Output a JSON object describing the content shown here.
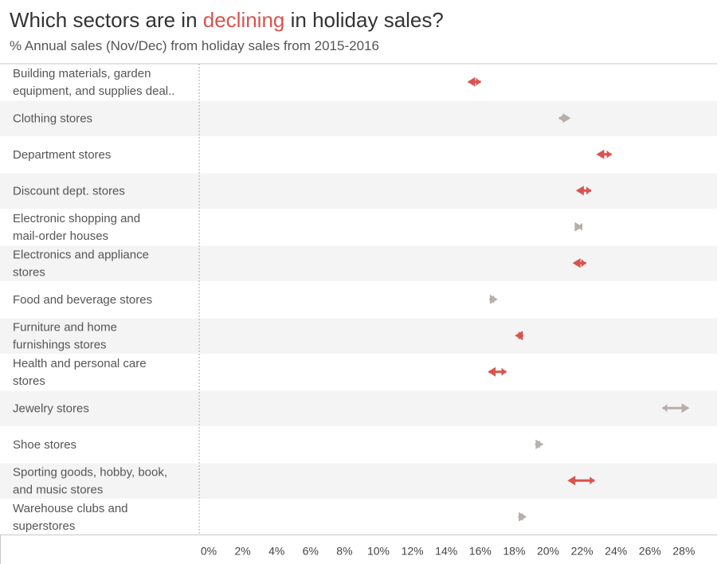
{
  "title": {
    "before": "Which sectors are in ",
    "highlight": "declining",
    "after": " in holiday sales?"
  },
  "subtitle": "% Annual sales (Nov/Dec) from holiday sales from 2015-2016",
  "colors": {
    "declining": "#d9534f",
    "increasing": "#b8aeab",
    "band": "#f4f4f4",
    "axis": "#c8c8c8"
  },
  "chart_data": {
    "type": "arrow",
    "title": "Which sectors are in declining in holiday sales?",
    "subtitle": "% Annual sales (Nov/Dec) from holiday sales from 2015-2016",
    "x_ticks": [
      "0%",
      "2%",
      "4%",
      "6%",
      "8%",
      "10%",
      "12%",
      "14%",
      "16%",
      "18%",
      "20%",
      "22%",
      "24%",
      "26%",
      "28%"
    ],
    "xlim": [
      0,
      30
    ],
    "series_names": [
      "2015",
      "2016"
    ],
    "categories": [
      {
        "label": [
          "Building materials, garden",
          "equipment, and supplies deal.."
        ],
        "from": 16.6,
        "to": 15.8
      },
      {
        "label": [
          "Clothing stores"
        ],
        "from": 21.2,
        "to": 21.9
      },
      {
        "label": [
          "Department stores"
        ],
        "from": 24.3,
        "to": 23.4
      },
      {
        "label": [
          "Discount dept. stores"
        ],
        "from": 23.1,
        "to": 22.2
      },
      {
        "label": [
          "Electronic shopping and",
          "mail-order houses"
        ],
        "from": 22.3,
        "to": 22.6
      },
      {
        "label": [
          "Electronics and appliance",
          "stores"
        ],
        "from": 22.8,
        "to": 22.0
      },
      {
        "label": [
          "Food and beverage stores"
        ],
        "from": 17.1,
        "to": 17.6
      },
      {
        "label": [
          "Furniture and home",
          "furnishings stores"
        ],
        "from": 19.1,
        "to": 18.6
      },
      {
        "label": [
          "Health and personal care",
          "stores"
        ],
        "from": 18.1,
        "to": 17.0
      },
      {
        "label": [
          "Jewelry stores"
        ],
        "from": 27.3,
        "to": 28.9
      },
      {
        "label": [
          "Shoe stores"
        ],
        "from": 19.8,
        "to": 20.3
      },
      {
        "label": [
          "Sporting goods, hobby, book,",
          "and music stores"
        ],
        "from": 23.3,
        "to": 21.7
      },
      {
        "label": [
          "Warehouse clubs and",
          "superstores"
        ],
        "from": 18.8,
        "to": 19.3
      }
    ]
  }
}
